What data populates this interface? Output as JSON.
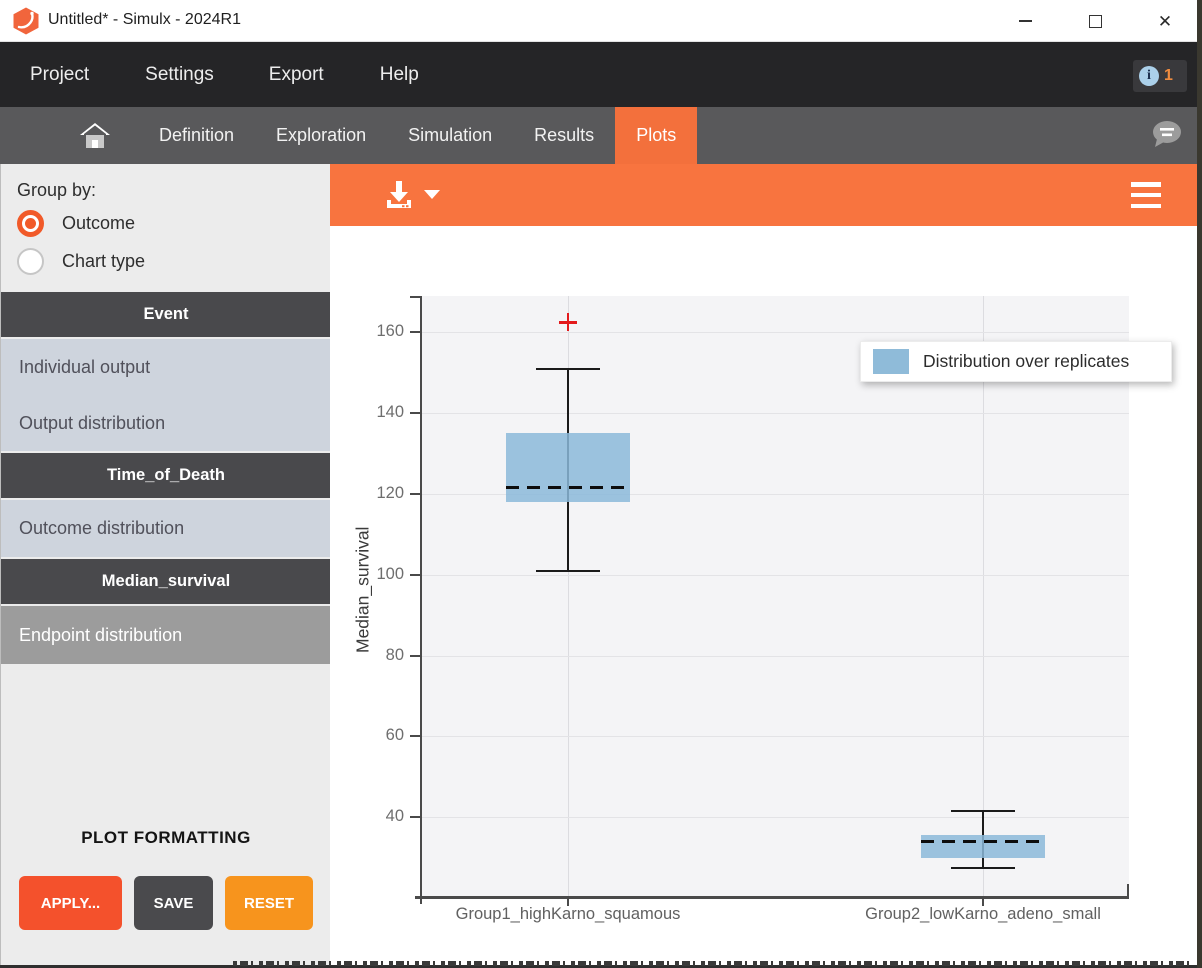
{
  "window": {
    "title": "Untitled* - Simulx - 2024R1"
  },
  "menubar": {
    "items": [
      "Project",
      "Settings",
      "Export",
      "Help"
    ],
    "info_icon": "info-icon",
    "notification_count": "1"
  },
  "tabbar": {
    "home_icon": "home-icon",
    "tabs": [
      "Definition",
      "Exploration",
      "Simulation",
      "Results",
      "Plots"
    ],
    "active_tab": "Plots",
    "chat_icon": "chat-bubble-icon"
  },
  "sidebar": {
    "group_by_label": "Group by:",
    "radios": [
      {
        "label": "Outcome",
        "selected": true
      },
      {
        "label": "Chart type",
        "selected": false
      }
    ],
    "sections": [
      {
        "header": "Event",
        "items": [
          {
            "label": "Individual output"
          },
          {
            "label": "Output distribution"
          }
        ]
      },
      {
        "header": "Time_of_Death",
        "items": [
          {
            "label": "Outcome distribution"
          }
        ]
      },
      {
        "header": "Median_survival",
        "items": [
          {
            "label": "Endpoint distribution",
            "selected": true
          }
        ]
      }
    ],
    "plot_formatting_label": "PLOT FORMATTING",
    "buttons": [
      {
        "label": "APPLY...",
        "color": "#f4512c"
      },
      {
        "label": "SAVE",
        "color": "#4a4a4d"
      },
      {
        "label": "RESET",
        "color": "#f7941d"
      }
    ]
  },
  "toolbar": {
    "download_icon": "download-icon",
    "menu_icon": "hamburger-icon",
    "accent_color": "#f8743f"
  },
  "chart_data": {
    "type": "boxplot",
    "ylabel": "Median_survival",
    "ylim": [
      20.5,
      169
    ],
    "yticks": [
      40,
      60,
      80,
      100,
      120,
      140,
      160
    ],
    "grid": true,
    "legend": {
      "label": "Distribution over replicates",
      "color": "#8fbbd9",
      "position": "top-right"
    },
    "categories": [
      "Group1_highKarno_squamous",
      "Group2_lowKarno_adeno_small"
    ],
    "boxes": [
      {
        "group": "Group1_highKarno_squamous",
        "whisker_low": 101,
        "q1": 118,
        "median": 121.5,
        "q3": 135,
        "whisker_high": 151,
        "outliers": [
          162.5
        ]
      },
      {
        "group": "Group2_lowKarno_adeno_small",
        "whisker_low": 27.5,
        "q1": 30,
        "median": 34,
        "q3": 35.5,
        "whisker_high": 41.5,
        "outliers": []
      }
    ],
    "median_style": "dashed",
    "box_color": "#8fbbd9",
    "outlier_color": "#e31a1c",
    "outlier_marker": "+"
  }
}
